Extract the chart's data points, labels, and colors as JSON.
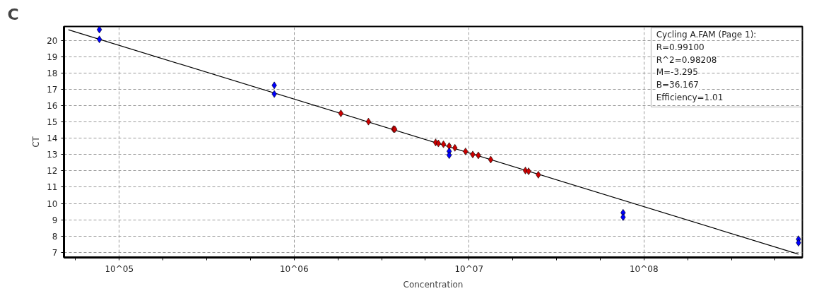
{
  "chart_data": {
    "type": "scatter",
    "xlabel": "Concentration",
    "ylabel": "CT",
    "annotations": [
      "C",
      "Cycling A.FAM (Page 1):",
      "R=0.99100",
      "R^2=0.98208",
      "M=-3.295",
      "B=36.167",
      "Efficiency=1.01"
    ],
    "log": "x",
    "grid": true,
    "xlim": [
      48300,
      805000000
    ],
    "ylim": [
      6.69,
      20.85
    ],
    "xticks": [
      {
        "value": 56234,
        "label": null
      },
      {
        "value": 100000,
        "label": "10^05"
      },
      {
        "value": 177828,
        "label": null
      },
      {
        "value": 316228,
        "label": null
      },
      {
        "value": 562341,
        "label": null
      },
      {
        "value": 1000000,
        "label": "10^06"
      },
      {
        "value": 1778279,
        "label": null
      },
      {
        "value": 3162278,
        "label": null
      },
      {
        "value": 5623413,
        "label": null
      },
      {
        "value": 10000000,
        "label": "10^07"
      },
      {
        "value": 17782794,
        "label": null
      },
      {
        "value": 31622777,
        "label": null
      },
      {
        "value": 56234133,
        "label": null
      },
      {
        "value": 100000000,
        "label": "10^08"
      },
      {
        "value": 177827941,
        "label": null
      },
      {
        "value": 316227766,
        "label": null
      },
      {
        "value": 562341325,
        "label": null
      }
    ],
    "yticks": [
      7,
      8,
      9,
      10,
      11,
      12,
      13,
      14,
      15,
      16,
      17,
      18,
      19,
      20
    ],
    "series": [
      {
        "type": "line",
        "marker": "none",
        "color": "#000000",
        "x": [
          51200,
          765000000
        ],
        "values": [
          20.65,
          6.89
        ]
      },
      {
        "marker": "diamond",
        "color": "#cc0000",
        "x": [
          1850000,
          2660000,
          3700000,
          3760000,
          6440000,
          6680000,
          7140000,
          7700000,
          8300000,
          9550000,
          10500000,
          11300000,
          13300000,
          21000000,
          21900000,
          24900000
        ],
        "values": [
          15.52,
          15.02,
          14.56,
          14.55,
          13.74,
          13.68,
          13.63,
          13.52,
          13.41,
          13.19,
          13.0,
          12.95,
          12.69,
          12.02,
          11.97,
          11.76
        ]
      },
      {
        "marker": "diamond",
        "color": "#0000ff",
        "x": [
          77000,
          77000,
          770000,
          770000,
          7700000,
          7700000,
          76000000,
          76000000,
          765000000,
          765000000
        ],
        "values": [
          20.66,
          20.06,
          17.24,
          16.71,
          13.2,
          12.96,
          9.43,
          9.16,
          7.81,
          7.59
        ]
      }
    ]
  }
}
